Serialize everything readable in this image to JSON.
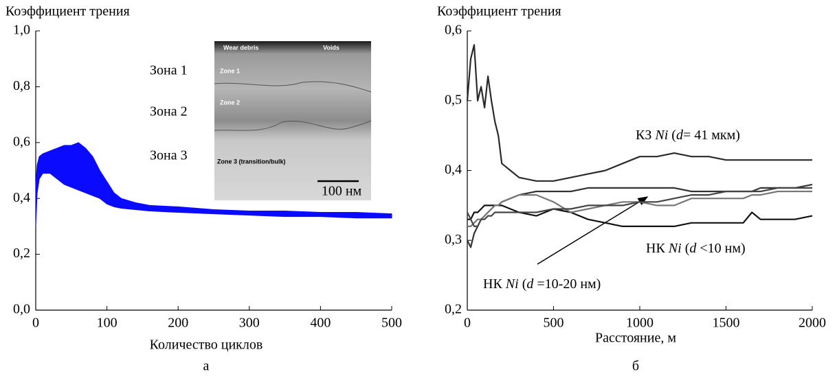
{
  "chart_data": [
    {
      "type": "band",
      "ylabel": "Коэффициент трения",
      "xlabel": "Количество циклов",
      "panel": "а",
      "x": [
        0,
        2,
        5,
        10,
        20,
        30,
        40,
        50,
        60,
        70,
        80,
        90,
        100,
        110,
        120,
        140,
        160,
        200,
        250,
        300,
        350,
        400,
        450,
        500
      ],
      "series": [
        {
          "color": "#0a0aff",
          "values": [
            0.3,
            0.42,
            0.47,
            0.49,
            0.49,
            0.47,
            0.45,
            0.44,
            0.43,
            0.42,
            0.41,
            0.4,
            0.38,
            0.37,
            0.365,
            0.36,
            0.355,
            0.35,
            0.345,
            0.34,
            0.335,
            0.335,
            0.33,
            0.33
          ]
        },
        {
          "color": "#0a0aff",
          "values": [
            0.45,
            0.52,
            0.55,
            0.56,
            0.57,
            0.58,
            0.59,
            0.59,
            0.6,
            0.58,
            0.55,
            0.5,
            0.46,
            0.42,
            0.4,
            0.385,
            0.375,
            0.37,
            0.36,
            0.355,
            0.355,
            0.35,
            0.35,
            0.345
          ]
        }
      ],
      "xlim": [
        0,
        500
      ],
      "xticks": [
        0,
        100,
        200,
        300,
        400,
        500
      ],
      "ylim": [
        0,
        1
      ],
      "yticks": [
        {
          "value": 0,
          "label": "0,0"
        },
        {
          "value": 0.2,
          "label": "0,2"
        },
        {
          "value": 0.4,
          "label": "0,4"
        },
        {
          "value": 0.6,
          "label": "0,6"
        },
        {
          "value": 0.8,
          "label": "0,8"
        },
        {
          "value": 1,
          "label": "1,0"
        }
      ],
      "zone_labels": [
        "Зона 1",
        "Зона 2",
        "Зона 3"
      ],
      "inset_labels": [
        "Wear debris",
        "Voids",
        "Zone 1",
        "Zone 2",
        "Zone 3 (transition/bulk)"
      ],
      "scale_bar": "100 нм"
    },
    {
      "type": "line",
      "ylabel": "Коэффициент трения",
      "xlabel": "Расстояние, м",
      "panel": "б",
      "x": [
        0,
        20,
        40,
        60,
        80,
        100,
        120,
        140,
        160,
        180,
        200,
        250,
        300,
        400,
        500,
        600,
        700,
        800,
        900,
        1000,
        1100,
        1200,
        1300,
        1400,
        1500,
        1600,
        1650,
        1700,
        1800,
        1900,
        2000
      ],
      "series": [
        {
          "color": "#2a2a2a",
          "values": [
            0.5,
            0.56,
            0.58,
            0.5,
            0.52,
            0.49,
            0.535,
            0.5,
            0.47,
            0.45,
            0.41,
            0.4,
            0.39,
            0.385,
            0.385,
            0.39,
            0.395,
            0.4,
            0.41,
            0.42,
            0.42,
            0.425,
            0.42,
            0.42,
            0.415,
            0.415,
            0.415,
            0.415,
            0.415,
            0.415,
            0.415
          ]
        },
        {
          "color": "#111111",
          "values": [
            0.33,
            0.33,
            0.34,
            0.34,
            0.345,
            0.35,
            0.35,
            0.35,
            0.35,
            0.35,
            0.35,
            0.345,
            0.34,
            0.335,
            0.345,
            0.34,
            0.33,
            0.325,
            0.32,
            0.32,
            0.32,
            0.32,
            0.325,
            0.325,
            0.325,
            0.325,
            0.34,
            0.33,
            0.33,
            0.33,
            0.335
          ]
        },
        {
          "color": "#333333",
          "values": [
            0.3,
            0.29,
            0.31,
            0.32,
            0.33,
            0.335,
            0.34,
            0.345,
            0.35,
            0.35,
            0.355,
            0.36,
            0.365,
            0.37,
            0.37,
            0.37,
            0.375,
            0.375,
            0.375,
            0.375,
            0.375,
            0.375,
            0.37,
            0.37,
            0.37,
            0.37,
            0.37,
            0.375,
            0.375,
            0.375,
            0.38
          ]
        },
        {
          "color": "#777777",
          "values": [
            0.32,
            0.32,
            0.325,
            0.33,
            0.33,
            0.335,
            0.34,
            0.345,
            0.35,
            0.35,
            0.355,
            0.36,
            0.365,
            0.365,
            0.355,
            0.34,
            0.345,
            0.35,
            0.355,
            0.355,
            0.35,
            0.35,
            0.36,
            0.36,
            0.36,
            0.36,
            0.365,
            0.365,
            0.37,
            0.37,
            0.37
          ]
        },
        {
          "color": "#444444",
          "values": [
            0.34,
            0.33,
            0.32,
            0.32,
            0.33,
            0.33,
            0.335,
            0.335,
            0.34,
            0.34,
            0.34,
            0.34,
            0.34,
            0.34,
            0.345,
            0.345,
            0.35,
            0.35,
            0.35,
            0.355,
            0.355,
            0.36,
            0.365,
            0.365,
            0.37,
            0.37,
            0.37,
            0.37,
            0.375,
            0.375,
            0.375
          ]
        }
      ],
      "xlim": [
        0,
        2000
      ],
      "xticks": [
        0,
        500,
        1000,
        1500,
        2000
      ],
      "ylim": [
        0.2,
        0.6
      ],
      "yticks": [
        {
          "value": 0.2,
          "label": "0,2"
        },
        {
          "value": 0.3,
          "label": "0,3"
        },
        {
          "value": 0.4,
          "label": "0,4"
        },
        {
          "value": 0.5,
          "label": "0,5"
        },
        {
          "value": 0.6,
          "label": "0,6"
        }
      ],
      "annotations": [
        [
          "КЗ ",
          "Ni",
          " (",
          "d",
          "= 41 мкм)"
        ],
        [
          "НК ",
          "Ni",
          " (",
          "d",
          " <10 нм)"
        ],
        [
          "НК ",
          "Ni",
          " (",
          "d",
          " =10-20 нм)"
        ]
      ]
    }
  ]
}
